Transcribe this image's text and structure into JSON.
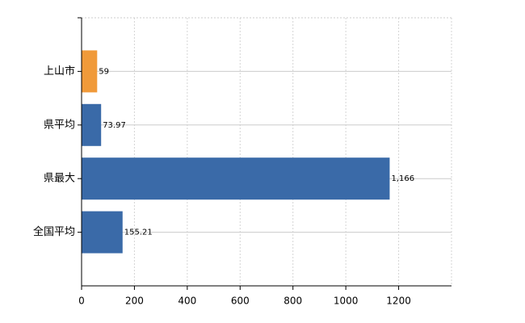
{
  "chart_data": {
    "type": "hbar",
    "categories": [
      "上山市",
      "県平均",
      "県最大",
      "全国平均"
    ],
    "values": [
      59,
      73.97,
      1166,
      155.21
    ],
    "value_labels": [
      "59",
      "73.97",
      "1,166",
      "155.21"
    ],
    "colors": [
      "#f09a3a",
      "#3a6aa8",
      "#3a6aa8",
      "#3a6aa8"
    ],
    "xlim": [
      0,
      1400
    ],
    "xticks": [
      0,
      200,
      400,
      600,
      800,
      1000,
      1200
    ],
    "grid": true
  }
}
